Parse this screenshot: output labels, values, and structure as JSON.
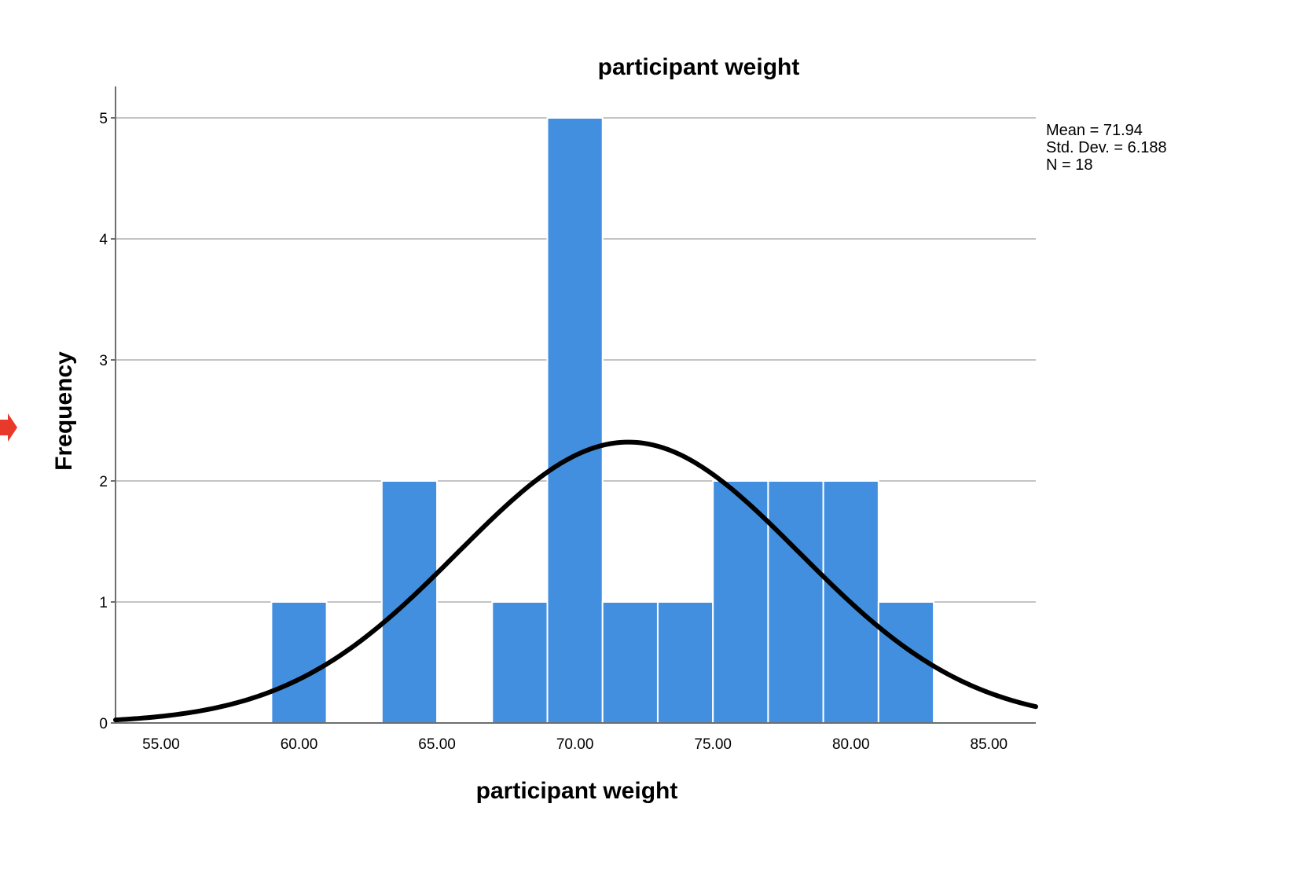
{
  "colors": {
    "bar_fill": "#428fe0",
    "curve": "#000000",
    "grid": "#c4c4c4",
    "marker": "#e8392b"
  },
  "chart_data": {
    "type": "bar",
    "subtype": "histogram-with-normal-curve",
    "title": "participant weight",
    "xlabel": "participant weight",
    "ylabel": "Frequency",
    "xlim": [
      53.35,
      86.7
    ],
    "ylim": [
      0,
      5
    ],
    "grid": "horizontal",
    "bin_width": 2,
    "bins": [
      {
        "start": 59,
        "end": 61,
        "count": 1
      },
      {
        "start": 63,
        "end": 65,
        "count": 2
      },
      {
        "start": 67,
        "end": 69,
        "count": 1
      },
      {
        "start": 69,
        "end": 71,
        "count": 5
      },
      {
        "start": 71,
        "end": 73,
        "count": 1
      },
      {
        "start": 73,
        "end": 75,
        "count": 1
      },
      {
        "start": 75,
        "end": 77,
        "count": 2
      },
      {
        "start": 77,
        "end": 79,
        "count": 2
      },
      {
        "start": 79,
        "end": 81,
        "count": 2
      },
      {
        "start": 81,
        "end": 83,
        "count": 1
      }
    ],
    "x_ticks": [
      {
        "value": 55,
        "label": "55.00"
      },
      {
        "value": 60,
        "label": "60.00"
      },
      {
        "value": 65,
        "label": "65.00"
      },
      {
        "value": 70,
        "label": "70.00"
      },
      {
        "value": 75,
        "label": "75.00"
      },
      {
        "value": 80,
        "label": "80.00"
      },
      {
        "value": 85,
        "label": "85.00"
      }
    ],
    "y_ticks": [
      {
        "value": 0,
        "label": "0"
      },
      {
        "value": 1,
        "label": "1"
      },
      {
        "value": 2,
        "label": "2"
      },
      {
        "value": 3,
        "label": "3"
      },
      {
        "value": 4,
        "label": "4"
      },
      {
        "value": 5,
        "label": "5"
      }
    ],
    "normal_curve": {
      "mean": 71.94,
      "sd": 6.188,
      "n": 18
    },
    "stats": {
      "mean": "Mean = 71.94",
      "sd": "Std. Dev. = 6.188",
      "n": "N = 18"
    },
    "stats_placement": "top-right"
  }
}
